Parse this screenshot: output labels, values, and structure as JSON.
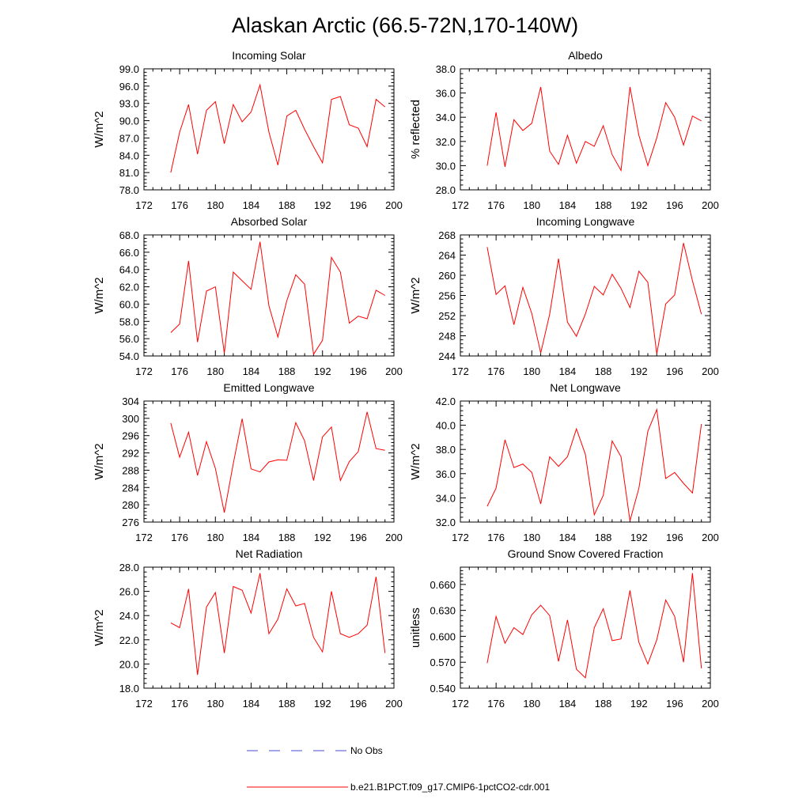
{
  "title": "Alaskan Arctic (66.5-72N,170-140W)",
  "legend": {
    "entries": [
      {
        "label": "No Obs",
        "color": "#4a4ad0",
        "style": "dashed"
      },
      {
        "label": "b.e21.B1PCT.f09_g17.CMIP6-1pctCO2-cdr.001",
        "color": "#ff0000",
        "style": "solid"
      }
    ]
  },
  "chart_data": [
    {
      "type": "line",
      "title": "Incoming Solar",
      "ylabel": "W/m^2",
      "xlim": [
        172,
        200
      ],
      "ylim": [
        78,
        99
      ],
      "xticks": [
        172,
        176,
        180,
        184,
        188,
        192,
        196,
        200
      ],
      "yticks": [
        78,
        81,
        84,
        87,
        90,
        93,
        96,
        99
      ],
      "ytick_labels": [
        "78.0",
        "81.0",
        "84.0",
        "87.0",
        "90.0",
        "93.0",
        "96.0",
        "99.0"
      ],
      "x": [
        175,
        176,
        177,
        178,
        179,
        180,
        181,
        182,
        183,
        184,
        185,
        186,
        187,
        188,
        189,
        190,
        191,
        192,
        193,
        194,
        195,
        196,
        197,
        198,
        199
      ],
      "series": [
        {
          "name": "b.e21.B1PCT.f09_g17.CMIP6-1pctCO2-cdr.001",
          "color": "#ff0000",
          "values": [
            81.0,
            88.0,
            92.8,
            84.2,
            91.8,
            93.3,
            86.0,
            92.8,
            89.8,
            91.5,
            96.2,
            88.0,
            82.3,
            90.8,
            91.8,
            88.5,
            85.5,
            82.7,
            93.7,
            94.2,
            89.3,
            88.7,
            85.5,
            93.7,
            92.4
          ]
        }
      ]
    },
    {
      "type": "line",
      "title": "Albedo",
      "ylabel": "% reflected",
      "xlim": [
        172,
        200
      ],
      "ylim": [
        28,
        38
      ],
      "xticks": [
        172,
        176,
        180,
        184,
        188,
        192,
        196,
        200
      ],
      "yticks": [
        28,
        30,
        32,
        34,
        36,
        38
      ],
      "ytick_labels": [
        "28.0",
        "30.0",
        "32.0",
        "34.0",
        "36.0",
        "38.0"
      ],
      "x": [
        175,
        176,
        177,
        178,
        179,
        180,
        181,
        182,
        183,
        184,
        185,
        186,
        187,
        188,
        189,
        190,
        191,
        192,
        193,
        194,
        195,
        196,
        197,
        198,
        199
      ],
      "series": [
        {
          "name": "b.e21.B1PCT.f09_g17.CMIP6-1pctCO2-cdr.001",
          "color": "#ff0000",
          "values": [
            30.0,
            34.4,
            29.9,
            33.8,
            32.9,
            33.5,
            36.5,
            31.2,
            30.1,
            32.5,
            30.2,
            32.0,
            31.6,
            33.3,
            30.9,
            29.6,
            36.5,
            32.5,
            30.0,
            32.3,
            35.2,
            34.0,
            31.7,
            34.1,
            33.7
          ]
        }
      ]
    },
    {
      "type": "line",
      "title": "Absorbed Solar",
      "ylabel": "W/m^2",
      "xlim": [
        172,
        200
      ],
      "ylim": [
        54,
        68
      ],
      "xticks": [
        172,
        176,
        180,
        184,
        188,
        192,
        196,
        200
      ],
      "yticks": [
        54,
        56,
        58,
        60,
        62,
        64,
        66,
        68
      ],
      "ytick_labels": [
        "54.0",
        "56.0",
        "58.0",
        "60.0",
        "62.0",
        "64.0",
        "66.0",
        "68.0"
      ],
      "x": [
        175,
        176,
        177,
        178,
        179,
        180,
        181,
        182,
        183,
        184,
        185,
        186,
        187,
        188,
        189,
        190,
        191,
        192,
        193,
        194,
        195,
        196,
        197,
        198,
        199
      ],
      "series": [
        {
          "name": "b.e21.B1PCT.f09_g17.CMIP6-1pctCO2-cdr.001",
          "color": "#ff0000",
          "values": [
            56.7,
            57.7,
            65.0,
            55.6,
            61.5,
            62.0,
            54.3,
            63.7,
            62.7,
            61.7,
            67.2,
            59.8,
            56.2,
            60.4,
            63.4,
            62.3,
            54.2,
            55.8,
            65.4,
            63.7,
            57.8,
            58.6,
            58.3,
            61.6,
            61.0
          ]
        }
      ]
    },
    {
      "type": "line",
      "title": "Incoming Longwave",
      "ylabel": "W/m^2",
      "xlim": [
        172,
        200
      ],
      "ylim": [
        244,
        268
      ],
      "xticks": [
        172,
        176,
        180,
        184,
        188,
        192,
        196,
        200
      ],
      "yticks": [
        244,
        248,
        252,
        256,
        260,
        264,
        268
      ],
      "ytick_labels": [
        "244",
        "248",
        "252",
        "256",
        "260",
        "264",
        "268"
      ],
      "x": [
        175,
        176,
        177,
        178,
        179,
        180,
        181,
        182,
        183,
        184,
        185,
        186,
        187,
        188,
        189,
        190,
        191,
        192,
        193,
        194,
        195,
        196,
        197,
        198,
        199
      ],
      "series": [
        {
          "name": "b.e21.B1PCT.f09_g17.CMIP6-1pctCO2-cdr.001",
          "color": "#ff0000",
          "values": [
            265.6,
            256.2,
            257.9,
            250.2,
            257.6,
            252.4,
            244.6,
            252.3,
            263.3,
            250.7,
            247.9,
            252.3,
            257.8,
            256.1,
            260.2,
            257.4,
            253.6,
            260.8,
            258.6,
            244.4,
            254.3,
            256.1,
            266.4,
            258.9,
            252.3
          ]
        }
      ]
    },
    {
      "type": "line",
      "title": "Emitted Longwave",
      "ylabel": "W/m^2",
      "xlim": [
        172,
        200
      ],
      "ylim": [
        276,
        304
      ],
      "xticks": [
        172,
        176,
        180,
        184,
        188,
        192,
        196,
        200
      ],
      "yticks": [
        276,
        280,
        284,
        288,
        292,
        296,
        300,
        304
      ],
      "ytick_labels": [
        "276",
        "280",
        "284",
        "288",
        "292",
        "296",
        "300",
        "304"
      ],
      "x": [
        175,
        176,
        177,
        178,
        179,
        180,
        181,
        182,
        183,
        184,
        185,
        186,
        187,
        188,
        189,
        190,
        191,
        192,
        193,
        194,
        195,
        196,
        197,
        198,
        199
      ],
      "series": [
        {
          "name": "b.e21.B1PCT.f09_g17.CMIP6-1pctCO2-cdr.001",
          "color": "#ff0000",
          "values": [
            298.9,
            291.0,
            296.8,
            286.8,
            294.6,
            288.4,
            278.2,
            289.5,
            299.9,
            288.3,
            287.6,
            289.9,
            290.4,
            290.3,
            299.0,
            294.8,
            285.6,
            295.7,
            298.0,
            285.6,
            290.0,
            292.3,
            301.5,
            293.0,
            292.6
          ]
        }
      ]
    },
    {
      "type": "line",
      "title": "Net Longwave",
      "ylabel": "W/m^2",
      "xlim": [
        172,
        200
      ],
      "ylim": [
        32,
        42
      ],
      "xticks": [
        172,
        176,
        180,
        184,
        188,
        192,
        196,
        200
      ],
      "yticks": [
        32,
        34,
        36,
        38,
        40,
        42
      ],
      "ytick_labels": [
        "32.0",
        "34.0",
        "36.0",
        "38.0",
        "40.0",
        "42.0"
      ],
      "x": [
        175,
        176,
        177,
        178,
        179,
        180,
        181,
        182,
        183,
        184,
        185,
        186,
        187,
        188,
        189,
        190,
        191,
        192,
        193,
        194,
        195,
        196,
        197,
        198,
        199
      ],
      "series": [
        {
          "name": "b.e21.B1PCT.f09_g17.CMIP6-1pctCO2-cdr.001",
          "color": "#ff0000",
          "values": [
            33.3,
            34.8,
            38.8,
            36.5,
            36.8,
            36.1,
            33.5,
            37.4,
            36.6,
            37.4,
            39.7,
            37.6,
            32.6,
            34.2,
            38.7,
            37.4,
            32.1,
            34.8,
            39.5,
            41.3,
            35.6,
            36.1,
            35.2,
            34.4,
            40.1
          ]
        }
      ]
    },
    {
      "type": "line",
      "title": "Net Radiation",
      "ylabel": "W/m^2",
      "xlim": [
        172,
        200
      ],
      "ylim": [
        18,
        28
      ],
      "xticks": [
        172,
        176,
        180,
        184,
        188,
        192,
        196,
        200
      ],
      "yticks": [
        18,
        20,
        22,
        24,
        26,
        28
      ],
      "ytick_labels": [
        "18.0",
        "20.0",
        "22.0",
        "24.0",
        "26.0",
        "28.0"
      ],
      "x": [
        175,
        176,
        177,
        178,
        179,
        180,
        181,
        182,
        183,
        184,
        185,
        186,
        187,
        188,
        189,
        190,
        191,
        192,
        193,
        194,
        195,
        196,
        197,
        198,
        199
      ],
      "series": [
        {
          "name": "b.e21.B1PCT.f09_g17.CMIP6-1pctCO2-cdr.001",
          "color": "#ff0000",
          "values": [
            23.4,
            23.0,
            26.2,
            19.1,
            24.7,
            25.9,
            20.9,
            26.4,
            26.1,
            24.2,
            27.5,
            22.5,
            23.7,
            26.2,
            24.8,
            25.0,
            22.2,
            21.0,
            26.0,
            22.5,
            22.2,
            22.5,
            23.2,
            27.2,
            20.9
          ]
        }
      ]
    },
    {
      "type": "line",
      "title": "Ground Snow Covered Fraction",
      "ylabel": "unitless",
      "xlim": [
        172,
        200
      ],
      "ylim": [
        0.54,
        0.68
      ],
      "xticks": [
        172,
        176,
        180,
        184,
        188,
        192,
        196,
        200
      ],
      "yticks": [
        0.54,
        0.57,
        0.6,
        0.63,
        0.66
      ],
      "ytick_labels": [
        "0.540",
        "0.570",
        "0.600",
        "0.630",
        "0.660"
      ],
      "x": [
        175,
        176,
        177,
        178,
        179,
        180,
        181,
        182,
        183,
        184,
        185,
        186,
        187,
        188,
        189,
        190,
        191,
        192,
        193,
        194,
        195,
        196,
        197,
        198,
        199
      ],
      "series": [
        {
          "name": "b.e21.B1PCT.f09_g17.CMIP6-1pctCO2-cdr.001",
          "color": "#ff0000",
          "values": [
            0.569,
            0.623,
            0.592,
            0.61,
            0.602,
            0.625,
            0.636,
            0.624,
            0.571,
            0.619,
            0.562,
            0.552,
            0.61,
            0.632,
            0.595,
            0.597,
            0.653,
            0.593,
            0.568,
            0.596,
            0.642,
            0.623,
            0.57,
            0.673,
            0.563
          ]
        }
      ]
    }
  ]
}
